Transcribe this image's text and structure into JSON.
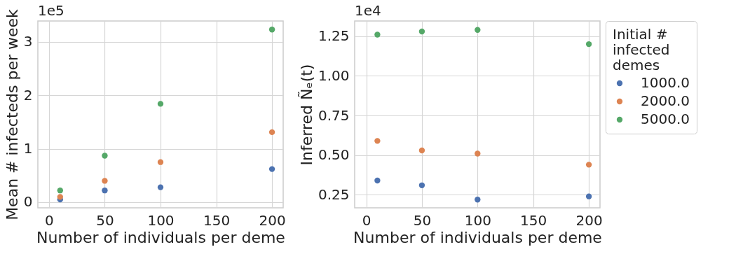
{
  "chart_data": [
    {
      "type": "scatter",
      "xlabel": "Number of individuals per deme",
      "ylabel": "Mean # infecteds per week",
      "annotations": [
        "1e5"
      ],
      "x": [
        10,
        50,
        100,
        200
      ],
      "xlim": [
        -10,
        210
      ],
      "xticks": [
        0,
        50,
        100,
        150,
        200
      ],
      "ylim": [
        -0.105,
        3.39
      ],
      "yticks": [
        0,
        1,
        2,
        3
      ],
      "grid": true,
      "marker": "circle",
      "legend": false,
      "series": [
        {
          "color": "#4c72b0",
          "values": [
            0.05,
            0.22,
            0.28,
            0.62
          ]
        },
        {
          "color": "#dd8452",
          "values": [
            0.1,
            0.4,
            0.75,
            1.31
          ]
        },
        {
          "color": "#55a868",
          "values": [
            0.22,
            0.87,
            1.84,
            3.23
          ]
        }
      ]
    },
    {
      "type": "scatter",
      "xlabel": "Number of individuals per deme",
      "ylabel": "Inferred Ñₑ(t)",
      "annotations": [
        "1e4"
      ],
      "legend_title": "Initial #\ninfected\ndemes",
      "x": [
        10,
        50,
        100,
        200
      ],
      "xlim": [
        -10.4,
        210
      ],
      "xticks": [
        0,
        50,
        100,
        150,
        200
      ],
      "ylim": [
        0.168,
        1.346
      ],
      "yticks": [
        {
          "value": 0.25,
          "label": "0.25"
        },
        {
          "value": 0.5,
          "label": "0.50"
        },
        {
          "value": 0.75,
          "label": "0.75"
        },
        {
          "value": 1,
          "label": "1.00"
        },
        {
          "value": 1.25,
          "label": "1.25"
        }
      ],
      "grid": true,
      "marker": "circle",
      "legend": "right",
      "series": [
        {
          "name": "1000.0",
          "color": "#4c72b0",
          "values": [
            0.34,
            0.31,
            0.22,
            0.24
          ]
        },
        {
          "name": "2000.0",
          "color": "#dd8452",
          "values": [
            0.59,
            0.53,
            0.51,
            0.44
          ]
        },
        {
          "name": "5000.0",
          "color": "#55a868",
          "values": [
            1.26,
            1.28,
            1.29,
            1.2
          ]
        }
      ]
    }
  ]
}
